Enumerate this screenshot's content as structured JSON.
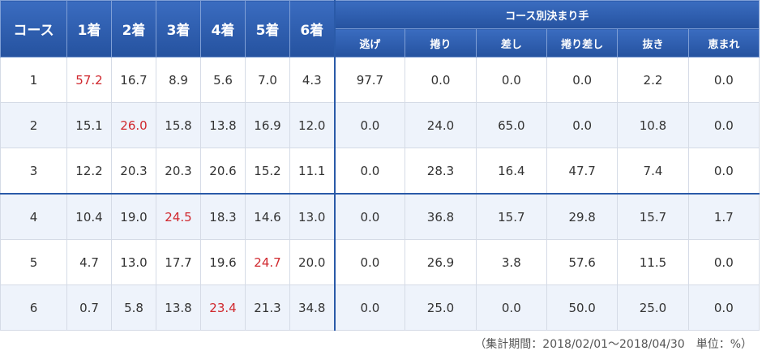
{
  "table": {
    "header": {
      "course": "コース",
      "finish": [
        "1着",
        "2着",
        "3着",
        "4着",
        "5着",
        "6着"
      ],
      "group": "コース別決まり手",
      "kimarite": [
        "逃げ",
        "捲り",
        "差し",
        "捲り差し",
        "抜き",
        "恵まれ"
      ]
    },
    "highlight_color": "#d0282e",
    "rows": [
      {
        "course": "1",
        "finish": [
          "57.2",
          "16.7",
          "8.9",
          "5.6",
          "7.0",
          "4.3"
        ],
        "kimarite": [
          "97.7",
          "0.0",
          "0.0",
          "0.0",
          "2.2",
          "0.0"
        ],
        "highlight": 0
      },
      {
        "course": "2",
        "finish": [
          "15.1",
          "26.0",
          "15.8",
          "13.8",
          "16.9",
          "12.0"
        ],
        "kimarite": [
          "0.0",
          "24.0",
          "65.0",
          "0.0",
          "10.8",
          "0.0"
        ],
        "highlight": 1
      },
      {
        "course": "3",
        "finish": [
          "12.2",
          "20.3",
          "20.3",
          "20.6",
          "15.2",
          "11.1"
        ],
        "kimarite": [
          "0.0",
          "28.3",
          "16.4",
          "47.7",
          "7.4",
          "0.0"
        ]
      },
      {
        "course": "4",
        "finish": [
          "10.4",
          "19.0",
          "24.5",
          "18.3",
          "14.6",
          "13.0"
        ],
        "kimarite": [
          "0.0",
          "36.8",
          "15.7",
          "29.8",
          "15.7",
          "1.7"
        ],
        "highlight": 2
      },
      {
        "course": "5",
        "finish": [
          "4.7",
          "13.0",
          "17.7",
          "19.6",
          "24.7",
          "20.0"
        ],
        "kimarite": [
          "0.0",
          "26.9",
          "3.8",
          "57.6",
          "11.5",
          "0.0"
        ],
        "highlight": 4
      },
      {
        "course": "6",
        "finish": [
          "0.7",
          "5.8",
          "13.8",
          "23.4",
          "21.3",
          "34.8"
        ],
        "kimarite": [
          "0.0",
          "25.0",
          "0.0",
          "50.0",
          "25.0",
          "0.0"
        ],
        "highlight": 3
      }
    ]
  },
  "footnote": "（集計期間：2018/02/01～2018/04/30　単位：%）"
}
